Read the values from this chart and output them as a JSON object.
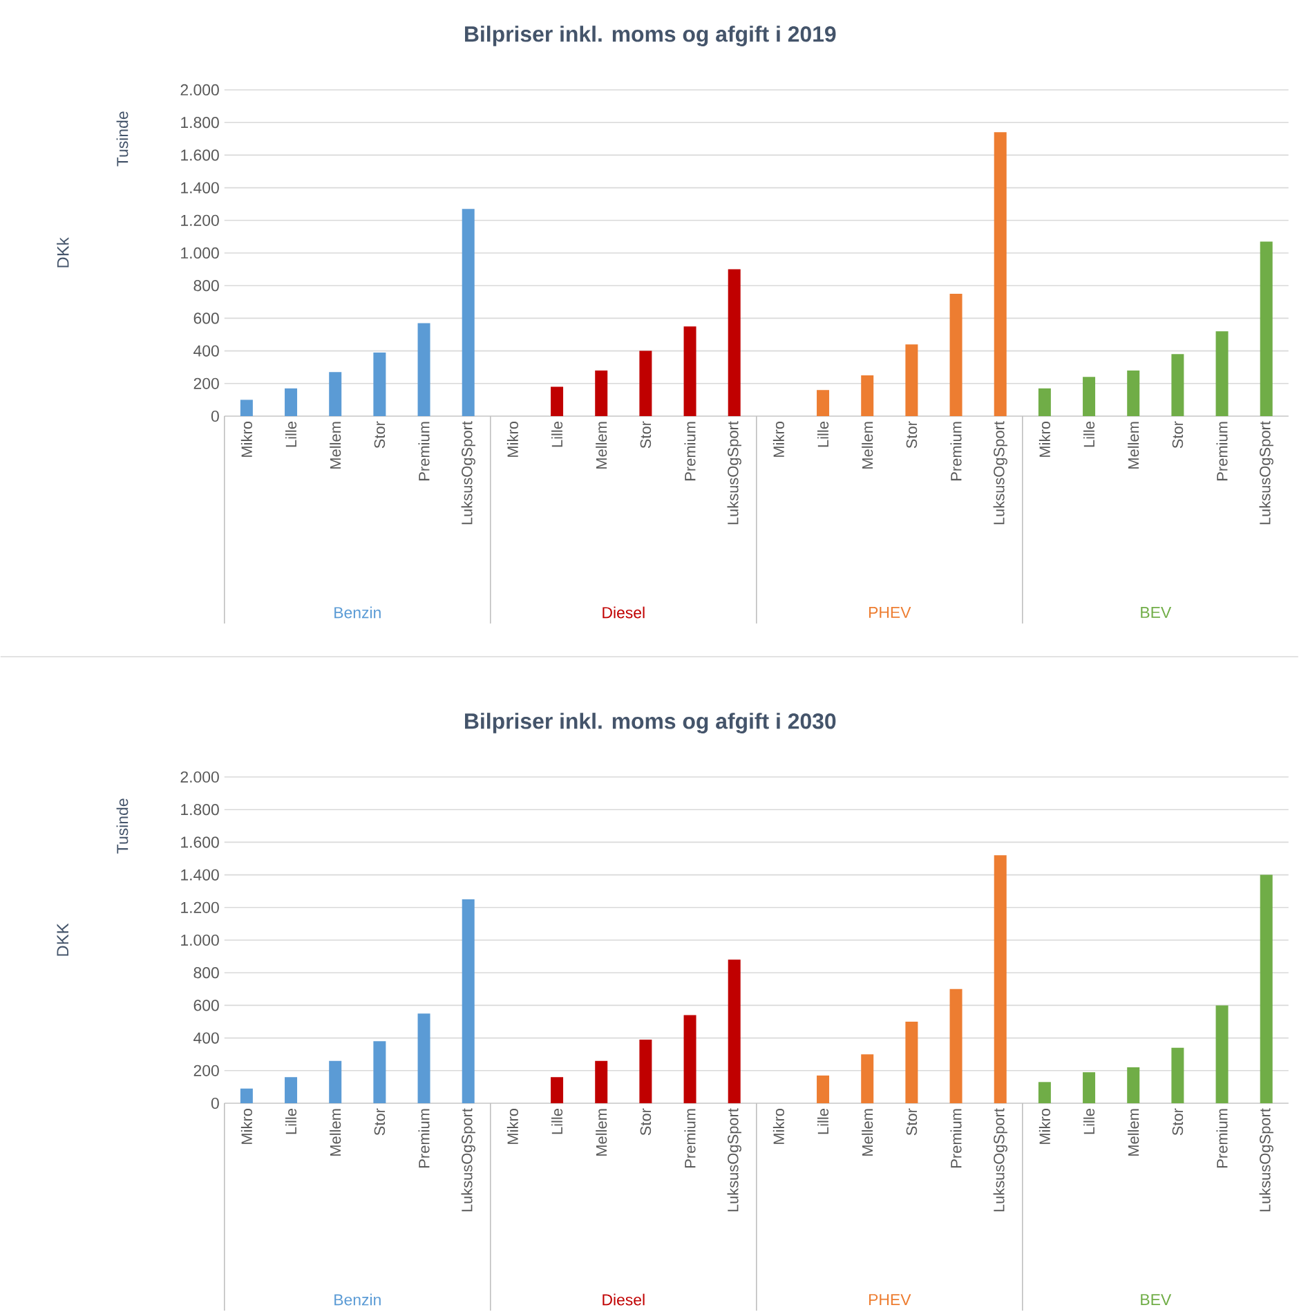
{
  "chart_data": [
    {
      "type": "bar",
      "title": "Bilpriser inkl. moms og afgift i 2019",
      "ylabel": "DKk",
      "annotations": [
        "Tusinde"
      ],
      "categories": [
        "Mikro",
        "Lille",
        "Mellem",
        "Stor",
        "Premium",
        "LuksusOgSport",
        "Mikro",
        "Lille",
        "Mellem",
        "Stor",
        "Premium",
        "LuksusOgSport",
        "Mikro",
        "Lille",
        "Mellem",
        "Stor",
        "Premium",
        "LuksusOgSport",
        "Mikro",
        "Lille",
        "Mellem",
        "Stor",
        "Premium",
        "LuksusOgSport"
      ],
      "series": [
        {
          "name": "Benzin",
          "color": "#5b9bd5",
          "values": [
            100,
            170,
            270,
            390,
            570,
            1270,
            null,
            null,
            null,
            null,
            null,
            null,
            null,
            null,
            null,
            null,
            null,
            null,
            null,
            null,
            null,
            null,
            null,
            null
          ]
        },
        {
          "name": "Diesel",
          "color": "#c00000",
          "values": [
            null,
            null,
            null,
            null,
            null,
            null,
            0,
            180,
            280,
            400,
            550,
            900,
            null,
            null,
            null,
            null,
            null,
            null,
            null,
            null,
            null,
            null,
            null,
            null
          ]
        },
        {
          "name": "PHEV",
          "color": "#ed7d31",
          "values": [
            null,
            null,
            null,
            null,
            null,
            null,
            null,
            null,
            null,
            null,
            null,
            null,
            0,
            160,
            250,
            440,
            750,
            1740,
            null,
            null,
            null,
            null,
            null,
            null
          ]
        },
        {
          "name": "BEV",
          "color": "#70ad47",
          "values": [
            null,
            null,
            null,
            null,
            null,
            null,
            null,
            null,
            null,
            null,
            null,
            null,
            null,
            null,
            null,
            null,
            null,
            null,
            170,
            240,
            280,
            380,
            520,
            1070
          ]
        }
      ],
      "ylim": [
        0,
        2000
      ],
      "yticks": [
        0,
        {
          "value": 200,
          "label": "200"
        },
        {
          "value": 400,
          "label": "400"
        },
        {
          "value": 600,
          "label": "600"
        },
        {
          "value": 800,
          "label": "800"
        },
        {
          "value": 1000,
          "label": "1.000"
        },
        {
          "value": 1200,
          "label": "1.200"
        },
        {
          "value": 1400,
          "label": "1.400"
        },
        {
          "value": 1600,
          "label": "1.600"
        },
        {
          "value": 1800,
          "label": "1.800"
        },
        {
          "value": 2000,
          "label": "2.000"
        }
      ],
      "grid": "y"
    },
    {
      "type": "bar",
      "title": "Bilpriser inkl. moms og afgift i 2030",
      "ylabel": "DKK",
      "annotations": [
        "Tusinde"
      ],
      "categories": [
        "Mikro",
        "Lille",
        "Mellem",
        "Stor",
        "Premium",
        "LuksusOgSport",
        "Mikro",
        "Lille",
        "Mellem",
        "Stor",
        "Premium",
        "LuksusOgSport",
        "Mikro",
        "Lille",
        "Mellem",
        "Stor",
        "Premium",
        "LuksusOgSport",
        "Mikro",
        "Lille",
        "Mellem",
        "Stor",
        "Premium",
        "LuksusOgSport"
      ],
      "series": [
        {
          "name": "Benzin",
          "color": "#5b9bd5",
          "values": [
            90,
            160,
            260,
            380,
            550,
            1250,
            null,
            null,
            null,
            null,
            null,
            null,
            null,
            null,
            null,
            null,
            null,
            null,
            null,
            null,
            null,
            null,
            null,
            null
          ]
        },
        {
          "name": "Diesel",
          "color": "#c00000",
          "values": [
            null,
            null,
            null,
            null,
            null,
            null,
            0,
            160,
            260,
            390,
            540,
            880,
            null,
            null,
            null,
            null,
            null,
            null,
            null,
            null,
            null,
            null,
            null,
            null
          ]
        },
        {
          "name": "PHEV",
          "color": "#ed7d31",
          "values": [
            null,
            null,
            null,
            null,
            null,
            null,
            null,
            null,
            null,
            null,
            null,
            null,
            0,
            170,
            300,
            500,
            700,
            1520,
            null,
            null,
            null,
            null,
            null,
            null
          ]
        },
        {
          "name": "BEV",
          "color": "#70ad47",
          "values": [
            null,
            null,
            null,
            null,
            null,
            null,
            null,
            null,
            null,
            null,
            null,
            null,
            null,
            null,
            null,
            null,
            null,
            null,
            130,
            190,
            220,
            340,
            600,
            1400
          ]
        }
      ],
      "ylim": [
        0,
        2000
      ],
      "yticks": [
        0,
        {
          "value": 200,
          "label": "200"
        },
        {
          "value": 400,
          "label": "400"
        },
        {
          "value": 600,
          "label": "600"
        },
        {
          "value": 800,
          "label": "800"
        },
        {
          "value": 1000,
          "label": "1.000"
        },
        {
          "value": 1200,
          "label": "1.200"
        },
        {
          "value": 1400,
          "label": "1.400"
        },
        {
          "value": 1600,
          "label": "1.600"
        },
        {
          "value": 1800,
          "label": "1.800"
        },
        {
          "value": 2000,
          "label": "2.000"
        }
      ],
      "grid": "y"
    }
  ]
}
